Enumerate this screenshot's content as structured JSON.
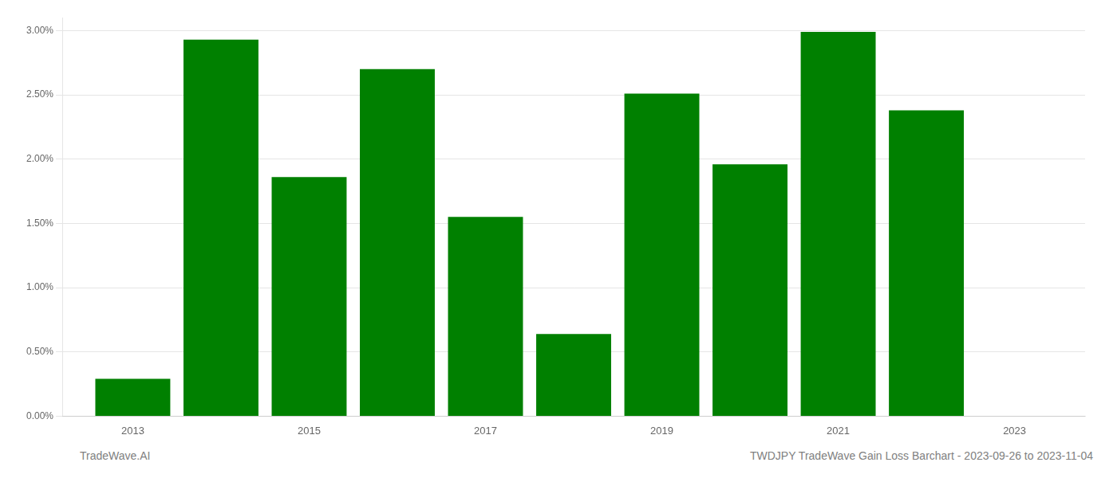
{
  "chart_data": {
    "type": "bar",
    "x": [
      2013,
      2014,
      2015,
      2016,
      2017,
      2018,
      2019,
      2020,
      2021,
      2022
    ],
    "values": [
      0.0029,
      0.0293,
      0.0186,
      0.027,
      0.0155,
      0.0064,
      0.0251,
      0.0196,
      0.0299,
      0.0238
    ],
    "color": "#008000",
    "xlim": [
      2012.2,
      2023.8
    ],
    "xticks": [
      2013,
      2015,
      2017,
      2019,
      2021,
      2023
    ],
    "ylim": [
      0.0,
      0.031
    ],
    "yticks": [
      {
        "value": 0.0,
        "label": "0.00%"
      },
      {
        "value": 0.005,
        "label": "0.50%"
      },
      {
        "value": 0.01,
        "label": "1.00%"
      },
      {
        "value": 0.015,
        "label": "1.50%"
      },
      {
        "value": 0.02,
        "label": "2.00%"
      },
      {
        "value": 0.025,
        "label": "2.50%"
      },
      {
        "value": 0.03,
        "label": "3.00%"
      }
    ],
    "grid": true,
    "annotations": [
      "TradeWave.AI",
      "TWDJPY TradeWave Gain Loss Barchart - 2023-09-26 to 2023-11-04"
    ]
  }
}
